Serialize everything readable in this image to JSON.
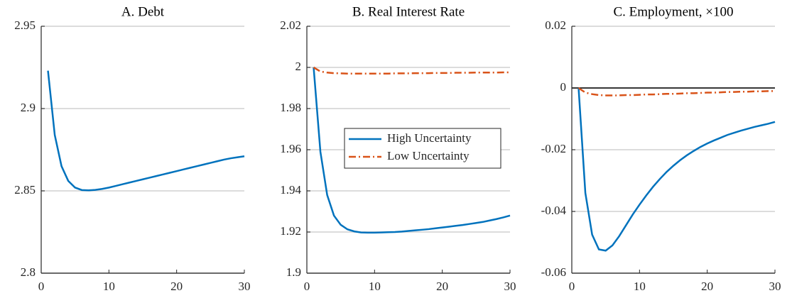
{
  "chart_data": [
    {
      "type": "line",
      "title": "A. Debt",
      "x": [
        1,
        2,
        3,
        4,
        5,
        6,
        7,
        8,
        9,
        10,
        11,
        12,
        13,
        14,
        15,
        16,
        17,
        18,
        19,
        20,
        21,
        22,
        23,
        24,
        25,
        26,
        27,
        28,
        29,
        30
      ],
      "series": [
        {
          "color": "#0072bd",
          "style": "solid",
          "values": [
            2.923,
            2.884,
            2.865,
            2.856,
            2.852,
            2.8505,
            2.8503,
            2.8506,
            2.8512,
            2.852,
            2.853,
            2.854,
            2.855,
            2.856,
            2.857,
            2.858,
            2.859,
            2.86,
            2.861,
            2.862,
            2.863,
            2.864,
            2.865,
            2.866,
            2.867,
            2.868,
            2.869,
            2.8698,
            2.8704,
            2.871
          ]
        }
      ],
      "xlim": [
        0,
        30
      ],
      "xticks": [
        0,
        10,
        20,
        30
      ],
      "ylim": [
        2.8,
        2.95
      ],
      "yticks": [
        2.8,
        2.85,
        2.9,
        2.95
      ],
      "grid": true
    },
    {
      "type": "line",
      "title": "B. Real Interest Rate",
      "x": [
        1,
        2,
        3,
        4,
        5,
        6,
        7,
        8,
        9,
        10,
        11,
        12,
        13,
        14,
        15,
        16,
        17,
        18,
        19,
        20,
        21,
        22,
        23,
        24,
        25,
        26,
        27,
        28,
        29,
        30
      ],
      "series": [
        {
          "name": "High Uncertainty",
          "color": "#0072bd",
          "style": "solid",
          "values": [
            2.0,
            1.959,
            1.938,
            1.928,
            1.9235,
            1.9213,
            1.9203,
            1.9198,
            1.9197,
            1.9197,
            1.9198,
            1.9199,
            1.92,
            1.9202,
            1.9205,
            1.9208,
            1.9211,
            1.9214,
            1.9218,
            1.9222,
            1.9226,
            1.923,
            1.9234,
            1.9239,
            1.9244,
            1.9249,
            1.9256,
            1.9263,
            1.9271,
            1.928
          ]
        },
        {
          "name": "Low Uncertainty",
          "color": "#d95319",
          "style": "dashdot",
          "values": [
            2.0,
            1.998,
            1.9975,
            1.9972,
            1.9971,
            1.997,
            1.997,
            1.997,
            1.997,
            1.997,
            1.997,
            1.997,
            1.9971,
            1.9971,
            1.9971,
            1.9972,
            1.9972,
            1.9972,
            1.9973,
            1.9973,
            1.9973,
            1.9974,
            1.9974,
            1.9974,
            1.9975,
            1.9975,
            1.9975,
            1.9975,
            1.9976,
            1.9976
          ]
        }
      ],
      "xlim": [
        0,
        30
      ],
      "xticks": [
        0,
        10,
        20,
        30
      ],
      "ylim": [
        1.9,
        2.02
      ],
      "yticks": [
        1.9,
        1.92,
        1.94,
        1.96,
        1.98,
        2,
        2.02
      ],
      "grid": true,
      "legend": "center-right"
    },
    {
      "type": "line",
      "title": "C. Employment, ×100",
      "x": [
        1,
        2,
        3,
        4,
        5,
        6,
        7,
        8,
        9,
        10,
        11,
        12,
        13,
        14,
        15,
        16,
        17,
        18,
        19,
        20,
        21,
        22,
        23,
        24,
        25,
        26,
        27,
        28,
        29,
        30
      ],
      "series": [
        {
          "color": "#0072bd",
          "style": "solid",
          "values": [
            0,
            -0.034,
            -0.0475,
            -0.0523,
            -0.0527,
            -0.051,
            -0.048,
            -0.0445,
            -0.041,
            -0.0378,
            -0.0348,
            -0.032,
            -0.0295,
            -0.0272,
            -0.0252,
            -0.0234,
            -0.0218,
            -0.0204,
            -0.0191,
            -0.018,
            -0.017,
            -0.0161,
            -0.0152,
            -0.0145,
            -0.0138,
            -0.0132,
            -0.0126,
            -0.0121,
            -0.0116,
            -0.011
          ]
        },
        {
          "color": "#d95319",
          "style": "dashdot",
          "values": [
            0,
            -0.0015,
            -0.002,
            -0.0023,
            -0.0024,
            -0.0024,
            -0.0024,
            -0.0023,
            -0.0023,
            -0.0022,
            -0.0021,
            -0.0021,
            -0.002,
            -0.0019,
            -0.0019,
            -0.0018,
            -0.0017,
            -0.0017,
            -0.0016,
            -0.0015,
            -0.0015,
            -0.0014,
            -0.0013,
            -0.0013,
            -0.0012,
            -0.0012,
            -0.0011,
            -0.0011,
            -0.001,
            -0.001
          ]
        }
      ],
      "xlim": [
        0,
        30
      ],
      "xticks": [
        0,
        10,
        20,
        30
      ],
      "ylim": [
        -0.06,
        0.02
      ],
      "yticks": [
        -0.06,
        -0.04,
        -0.02,
        0,
        0.02
      ],
      "grid": true,
      "zero_line": true
    }
  ]
}
